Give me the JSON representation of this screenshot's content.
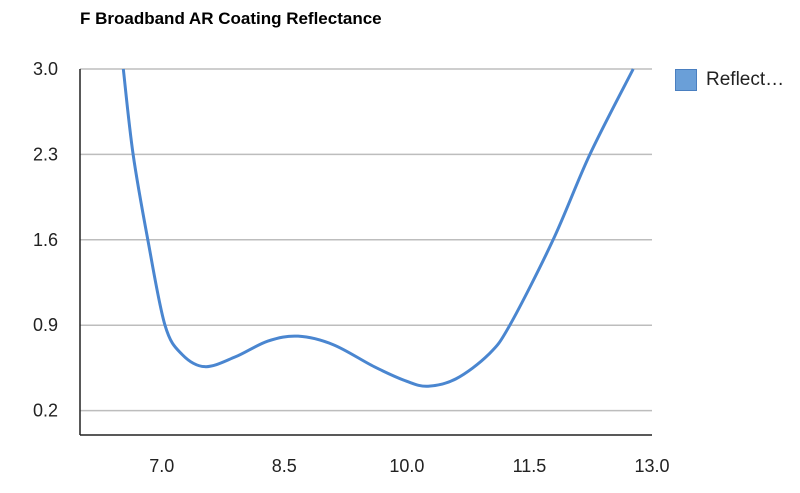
{
  "chart_data": {
    "type": "line",
    "title": "F Broadband AR Coating Reflectance",
    "xlabel": "",
    "ylabel": "",
    "xlim": [
      6.0,
      13.0
    ],
    "ylim": [
      0.0,
      3.0
    ],
    "xticks": [
      "7.0",
      "8.5",
      "10.0",
      "11.5",
      "13.0"
    ],
    "xtick_values": [
      7.0,
      8.5,
      10.0,
      11.5,
      13.0
    ],
    "yticks": [
      "0.2",
      "0.9",
      "1.6",
      "2.3",
      "3.0"
    ],
    "ytick_values": [
      0.2,
      0.9,
      1.6,
      2.3,
      3.0
    ],
    "grid": true,
    "legend_position": "top-right",
    "series": [
      {
        "name": "Reflect…",
        "color": "#4a86d0",
        "x": [
          6.53,
          6.65,
          6.83,
          7.04,
          7.25,
          7.53,
          7.9,
          8.3,
          8.67,
          9.1,
          9.6,
          10.0,
          10.26,
          10.6,
          11.0,
          11.26,
          11.79,
          12.24,
          12.77
        ],
        "y": [
          3.0,
          2.3,
          1.6,
          0.9,
          0.66,
          0.56,
          0.64,
          0.77,
          0.81,
          0.74,
          0.56,
          0.44,
          0.4,
          0.46,
          0.66,
          0.9,
          1.6,
          2.3,
          3.0
        ]
      }
    ]
  }
}
